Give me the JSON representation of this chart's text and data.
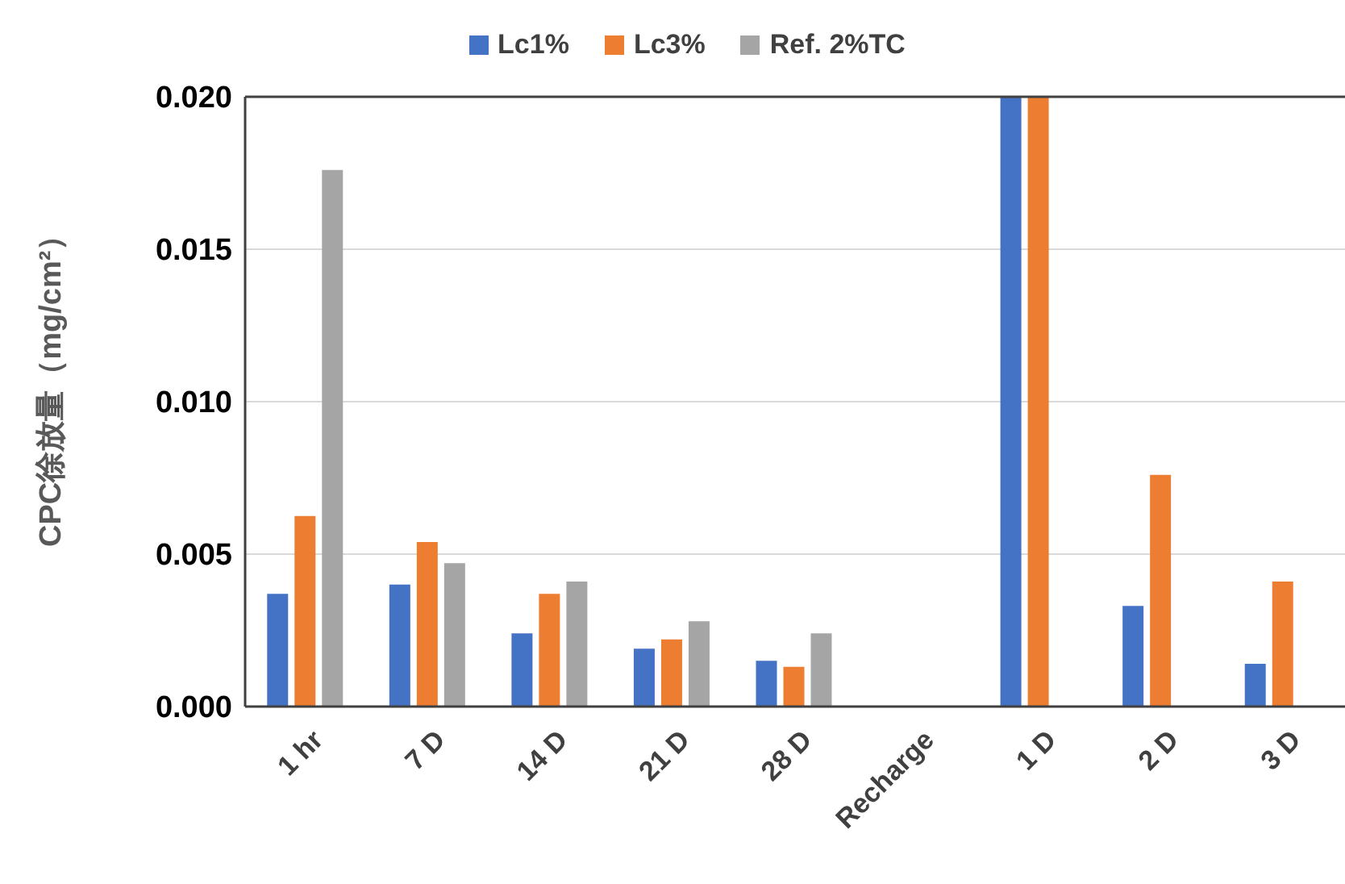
{
  "chart_data": {
    "type": "bar",
    "ylabel": "CPC徐放量（mg/cm²）",
    "categories": [
      "1 hr",
      "7 D",
      "14 D",
      "21 D",
      "28 D",
      "Recharge",
      "1 D",
      "2 D",
      "3 D"
    ],
    "series": [
      {
        "name": "Lc1%",
        "color": "#4472c4",
        "values": [
          0.0037,
          0.004,
          0.0024,
          0.0019,
          0.0015,
          null,
          0.02,
          0.0033,
          0.0014
        ]
      },
      {
        "name": "Lc3%",
        "color": "#ed7d31",
        "values": [
          0.00625,
          0.0054,
          0.0037,
          0.0022,
          0.0013,
          null,
          0.02,
          0.0076,
          0.0041
        ]
      },
      {
        "name": "Ref. 2%TC",
        "color": "#a5a5a5",
        "values": [
          0.0176,
          0.0047,
          0.0041,
          0.0028,
          0.0024,
          null,
          null,
          null,
          null
        ]
      }
    ],
    "ylim": [
      0,
      0.02
    ],
    "yticks": [
      {
        "value": 0,
        "label": "0.000"
      },
      {
        "value": 0.005,
        "label": "0.005"
      },
      {
        "value": 0.01,
        "label": "0.010"
      },
      {
        "value": 0.015,
        "label": "0.015"
      },
      {
        "value": 0.02,
        "label": "0.020"
      }
    ],
    "grid": "y",
    "legend": "top"
  }
}
